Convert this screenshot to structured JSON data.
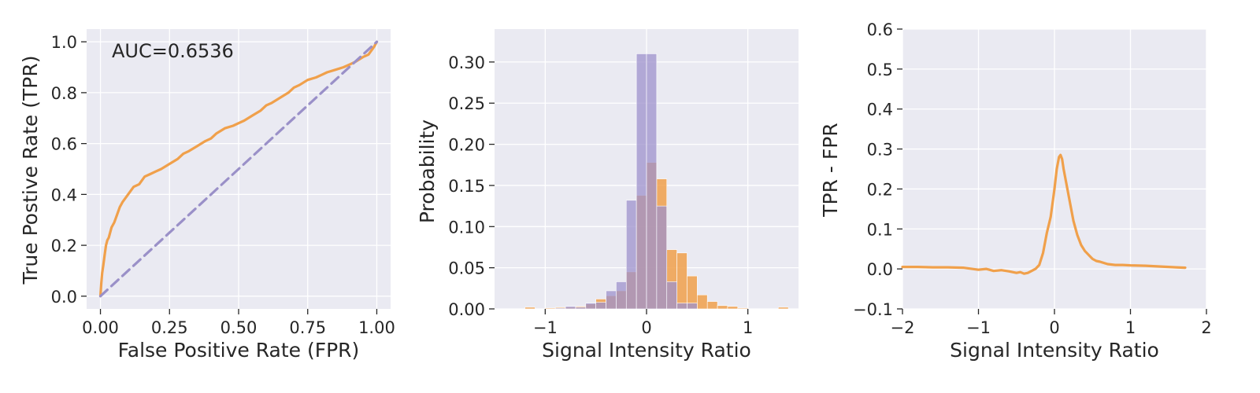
{
  "colors": {
    "orange": "#f0a04b",
    "purple": "#9d92cc",
    "diagonal": "#9a90c8",
    "panel_background": "#eaeaf2",
    "grid": "#ffffff",
    "text": "#262626"
  },
  "chart_data": [
    {
      "type": "line",
      "xlabel": "False Positive Rate (FPR)",
      "ylabel": "True Postive Rate (TPR)",
      "annotation": "AUC=0.6536",
      "xlim": [
        -0.05,
        1.05
      ],
      "ylim": [
        -0.05,
        1.05
      ],
      "xticks": [
        0.0,
        0.25,
        0.5,
        0.75,
        1.0
      ],
      "xtick_labels": [
        "0.00",
        "0.25",
        "0.50",
        "0.75",
        "1.00"
      ],
      "yticks": [
        0.0,
        0.2,
        0.4,
        0.6,
        0.8,
        1.0
      ],
      "ytick_labels": [
        "0.0",
        "0.2",
        "0.4",
        "0.6",
        "0.8",
        "1.0"
      ],
      "grid": true,
      "series": [
        {
          "style": "solid",
          "color": "#f0a04b",
          "x": [
            0.0,
            0.003,
            0.006,
            0.01,
            0.015,
            0.02,
            0.025,
            0.03,
            0.04,
            0.05,
            0.06,
            0.07,
            0.08,
            0.1,
            0.12,
            0.14,
            0.16,
            0.18,
            0.2,
            0.22,
            0.25,
            0.28,
            0.3,
            0.32,
            0.35,
            0.38,
            0.4,
            0.42,
            0.45,
            0.48,
            0.5,
            0.52,
            0.55,
            0.58,
            0.6,
            0.62,
            0.65,
            0.68,
            0.7,
            0.72,
            0.75,
            0.78,
            0.8,
            0.82,
            0.85,
            0.88,
            0.9,
            0.92,
            0.95,
            0.97,
            0.99,
            1.0
          ],
          "y": [
            0.0,
            0.05,
            0.09,
            0.12,
            0.16,
            0.2,
            0.22,
            0.23,
            0.27,
            0.29,
            0.32,
            0.35,
            0.37,
            0.4,
            0.43,
            0.44,
            0.47,
            0.48,
            0.49,
            0.5,
            0.52,
            0.54,
            0.56,
            0.57,
            0.59,
            0.61,
            0.62,
            0.64,
            0.66,
            0.67,
            0.68,
            0.69,
            0.71,
            0.73,
            0.75,
            0.76,
            0.78,
            0.8,
            0.82,
            0.83,
            0.85,
            0.86,
            0.87,
            0.88,
            0.89,
            0.9,
            0.91,
            0.92,
            0.94,
            0.95,
            0.98,
            1.0
          ]
        },
        {
          "style": "dashed",
          "color": "#9a90c8",
          "x": [
            0.0,
            1.0
          ],
          "y": [
            0.0,
            1.0
          ]
        }
      ]
    },
    {
      "type": "bar",
      "xlabel": "Signal Intensity Ratio",
      "ylabel": "Probability",
      "xlim": [
        -1.5,
        1.5
      ],
      "ylim": [
        0,
        0.34
      ],
      "xticks": [
        -1,
        0,
        1
      ],
      "xtick_labels": [
        "−1",
        "0",
        "1"
      ],
      "yticks": [
        0,
        0.05,
        0.1,
        0.15,
        0.2,
        0.25,
        0.3
      ],
      "ytick_labels": [
        "0.00",
        "0.05",
        "0.10",
        "0.15",
        "0.20",
        "0.25",
        "0.30"
      ],
      "grid": true,
      "bin_width": 0.1,
      "series": [
        {
          "color": "#f0a04b",
          "bin_starts": [
            -1.2,
            -1.0,
            -0.9,
            -0.8,
            -0.7,
            -0.6,
            -0.5,
            -0.4,
            -0.3,
            -0.2,
            -0.1,
            0.0,
            0.1,
            0.2,
            0.3,
            0.4,
            0.5,
            0.6,
            0.7,
            0.8,
            0.9,
            1.3
          ],
          "values": [
            0.002,
            0.001,
            0.002,
            0.002,
            0.003,
            0.006,
            0.012,
            0.016,
            0.022,
            0.045,
            0.138,
            0.178,
            0.158,
            0.072,
            0.068,
            0.04,
            0.017,
            0.009,
            0.004,
            0.003,
            0.001,
            0.002
          ]
        },
        {
          "color": "#9d92cc",
          "bin_starts": [
            -0.9,
            -0.8,
            -0.7,
            -0.6,
            -0.5,
            -0.4,
            -0.3,
            -0.2,
            -0.1,
            0.0,
            0.1,
            0.2,
            0.3,
            0.4
          ],
          "values": [
            0.001,
            0.003,
            0.002,
            0.007,
            0.008,
            0.022,
            0.033,
            0.132,
            0.31,
            0.31,
            0.125,
            0.033,
            0.007,
            0.007
          ]
        }
      ]
    },
    {
      "type": "line",
      "xlabel": "Signal Intensity Ratio",
      "ylabel": "TPR - FPR",
      "xlim": [
        -2,
        2
      ],
      "ylim": [
        -0.1,
        0.6
      ],
      "xticks": [
        -2,
        -1,
        0,
        1,
        2
      ],
      "xtick_labels": [
        "−2",
        "−1",
        "0",
        "1",
        "2"
      ],
      "yticks": [
        -0.1,
        0.0,
        0.1,
        0.2,
        0.3,
        0.4,
        0.5,
        0.6
      ],
      "ytick_labels": [
        "−0.1",
        "0.0",
        "0.1",
        "0.2",
        "0.3",
        "0.4",
        "0.5",
        "0.6"
      ],
      "grid": true,
      "series": [
        {
          "color": "#f0a04b",
          "x": [
            -2.0,
            -1.8,
            -1.6,
            -1.4,
            -1.2,
            -1.0,
            -0.9,
            -0.8,
            -0.7,
            -0.6,
            -0.5,
            -0.45,
            -0.4,
            -0.35,
            -0.3,
            -0.25,
            -0.2,
            -0.15,
            -0.1,
            -0.05,
            0.0,
            0.03,
            0.06,
            0.08,
            0.1,
            0.12,
            0.15,
            0.2,
            0.25,
            0.3,
            0.35,
            0.4,
            0.45,
            0.5,
            0.55,
            0.6,
            0.7,
            0.8,
            0.9,
            1.0,
            1.2,
            1.4,
            1.6,
            1.72
          ],
          "y": [
            0.005,
            0.005,
            0.004,
            0.004,
            0.003,
            -0.002,
            0.0,
            -0.005,
            -0.003,
            -0.006,
            -0.01,
            -0.008,
            -0.012,
            -0.01,
            -0.005,
            0.0,
            0.01,
            0.04,
            0.09,
            0.13,
            0.2,
            0.25,
            0.28,
            0.285,
            0.275,
            0.25,
            0.22,
            0.17,
            0.12,
            0.085,
            0.06,
            0.045,
            0.035,
            0.025,
            0.02,
            0.018,
            0.012,
            0.01,
            0.01,
            0.009,
            0.008,
            0.006,
            0.004,
            0.003
          ]
        }
      ]
    }
  ]
}
